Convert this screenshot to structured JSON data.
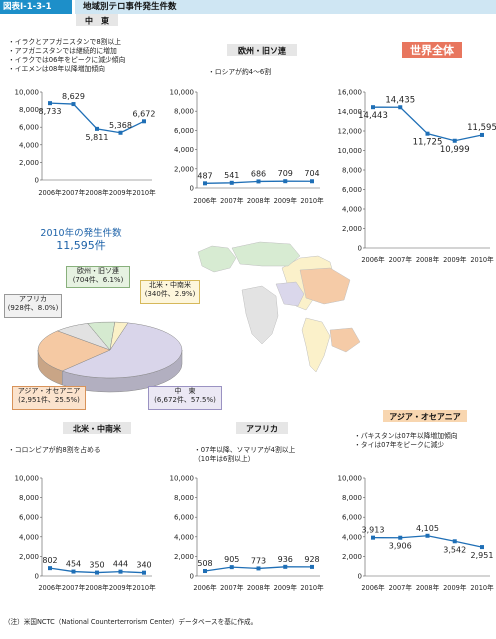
{
  "header": {
    "figure_no": "図表Ⅰ-1-3-1",
    "title": "地域別テロ事件発生件数"
  },
  "footnote": "（注）米国NCTC（National Counterterrorism Center）データベースを基に作成。",
  "pie_title": {
    "line1": "2010年の発生件数",
    "line2": "11,595件"
  },
  "chart_data": [
    {
      "id": "middle_east",
      "type": "line",
      "title": "中　東",
      "notes": [
        "・イラクとアフガニスタンで8割以上",
        "・アフガニスタンでは継続的に増加",
        "・イラクでは06年をピークに減少傾向",
        "・イエメンは08年以降増加傾向"
      ],
      "categories": [
        "2006年",
        "2007年",
        "2008年",
        "2009年",
        "2010年"
      ],
      "values": [
        8733,
        8629,
        5811,
        5368,
        6672
      ],
      "value_labels": [
        "8,733",
        "8,629",
        "5,811",
        "5,368",
        "6,672"
      ],
      "label_pos": [
        "below",
        "above",
        "below",
        "above",
        "above"
      ],
      "ylim": [
        0,
        10000
      ],
      "yticks": [
        0,
        2000,
        4000,
        6000,
        8000,
        10000
      ],
      "ytick_labels": [
        "0",
        "2,000",
        "4,000",
        "6,000",
        "8,000",
        "10,000"
      ]
    },
    {
      "id": "europe",
      "type": "line",
      "title": "欧州・旧ソ連",
      "notes": [
        "・ロシアが約4～6割"
      ],
      "categories": [
        "2006年",
        "2007年",
        "2008年",
        "2009年",
        "2010年"
      ],
      "values": [
        487,
        541,
        686,
        709,
        704
      ],
      "value_labels": [
        "487",
        "541",
        "686",
        "709",
        "704"
      ],
      "label_pos": [
        "above",
        "above",
        "above",
        "above",
        "above"
      ],
      "ylim": [
        0,
        10000
      ],
      "yticks": [
        0,
        2000,
        4000,
        6000,
        8000,
        10000
      ],
      "ytick_labels": [
        "0",
        "2,000",
        "4,000",
        "6,000",
        "8,000",
        "10,000"
      ]
    },
    {
      "id": "world",
      "type": "line",
      "title": "世界全体",
      "notes": [],
      "categories": [
        "2006年",
        "2007年",
        "2008年",
        "2009年",
        "2010年"
      ],
      "values": [
        14443,
        14435,
        11725,
        10999,
        11595
      ],
      "value_labels": [
        "14,443",
        "14,435",
        "11,725",
        "10,999",
        "11,595"
      ],
      "label_pos": [
        "below",
        "above",
        "below",
        "below",
        "above"
      ],
      "ylim": [
        0,
        16000
      ],
      "yticks": [
        0,
        2000,
        4000,
        6000,
        8000,
        10000,
        12000,
        14000,
        16000
      ],
      "ytick_labels": [
        "0",
        "2,000",
        "4,000",
        "6,000",
        "8,000",
        "10,000",
        "12,000",
        "14,000",
        "16,000"
      ]
    },
    {
      "id": "latam",
      "type": "line",
      "title": "北米・中南米",
      "notes": [
        "・コロンビアが約8割を占める"
      ],
      "categories": [
        "2006年",
        "2007年",
        "2008年",
        "2009年",
        "2010年"
      ],
      "values": [
        802,
        454,
        350,
        444,
        340
      ],
      "value_labels": [
        "802",
        "454",
        "350",
        "444",
        "340"
      ],
      "label_pos": [
        "above",
        "above",
        "above",
        "above",
        "above"
      ],
      "ylim": [
        0,
        10000
      ],
      "yticks": [
        0,
        2000,
        4000,
        6000,
        8000,
        10000
      ],
      "ytick_labels": [
        "0",
        "2,000",
        "4,000",
        "6,000",
        "8,000",
        "10,000"
      ]
    },
    {
      "id": "africa",
      "type": "line",
      "title": "アフリカ",
      "notes": [
        "・07年以降、ソマリアが4割以上",
        "（10年は6割以上）"
      ],
      "categories": [
        "2006年",
        "2007年",
        "2008年",
        "2009年",
        "2010年"
      ],
      "values": [
        508,
        905,
        773,
        936,
        928
      ],
      "value_labels": [
        "508",
        "905",
        "773",
        "936",
        "928"
      ],
      "label_pos": [
        "above",
        "above",
        "above",
        "above",
        "above"
      ],
      "ylim": [
        0,
        10000
      ],
      "yticks": [
        0,
        2000,
        4000,
        6000,
        8000,
        10000
      ],
      "ytick_labels": [
        "0",
        "2,000",
        "4,000",
        "6,000",
        "8,000",
        "10,000"
      ]
    },
    {
      "id": "asia",
      "type": "line",
      "title": "アジア・オセアニア",
      "notes": [
        "・パキスタンは07年以降増加傾向",
        "・タイは07年をピークに減少"
      ],
      "categories": [
        "2006年",
        "2007年",
        "2008年",
        "2009年",
        "2010年"
      ],
      "values": [
        3913,
        3906,
        4105,
        3542,
        2951
      ],
      "value_labels": [
        "3,913",
        "3,906",
        "4,105",
        "3,542",
        "2,951"
      ],
      "label_pos": [
        "above",
        "below",
        "above",
        "below",
        "below"
      ],
      "ylim": [
        0,
        10000
      ],
      "yticks": [
        0,
        2000,
        4000,
        6000,
        8000,
        10000
      ],
      "ytick_labels": [
        "0",
        "2,000",
        "4,000",
        "6,000",
        "8,000",
        "10,000"
      ]
    },
    {
      "id": "pie_2010",
      "type": "pie",
      "title": "2010年の発生件数 11,595件",
      "slices": [
        {
          "name": "中　東",
          "value": 6672,
          "pct": "57.5%",
          "label": "(6,672件、57.5%)",
          "color": "#d9d5ea"
        },
        {
          "name": "アジア・オセアニア",
          "value": 2951,
          "pct": "25.5%",
          "label": "(2,951件、25.5%)",
          "color": "#f5c9a3"
        },
        {
          "name": "アフリカ",
          "value": 928,
          "pct": "8.0%",
          "label": "(928件、8.0%)",
          "color": "#e2e2e2"
        },
        {
          "name": "欧州・旧ソ連",
          "value": 704,
          "pct": "6.1%",
          "label": "(704件、6.1%)",
          "color": "#d5ead0"
        },
        {
          "name": "北米・中南米",
          "value": 340,
          "pct": "2.9%",
          "label": "(340件、2.9%)",
          "color": "#fbf1c8"
        }
      ]
    }
  ],
  "colors": {
    "accent": "#1d8fc9",
    "line": "#1f6fb6",
    "world_title_bg": "#e8765e",
    "title_bg": "#e6e6e6",
    "asia_title_bg": "#f8d6b0"
  }
}
